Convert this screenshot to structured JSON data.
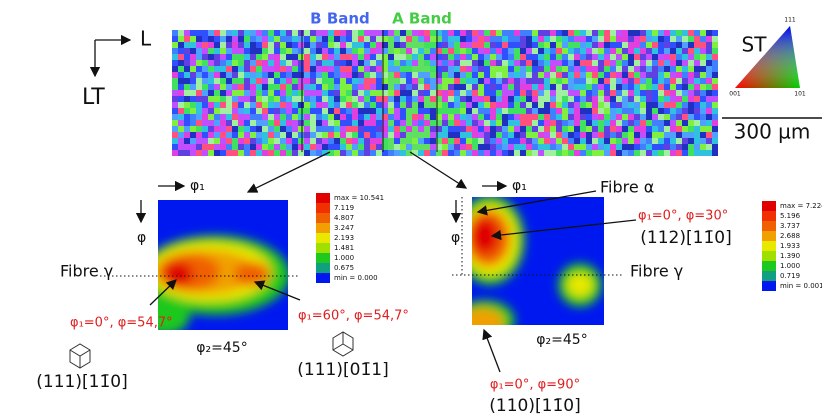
{
  "map": {
    "axis_x": "L",
    "axis_y": "LT",
    "band_b": "B Band",
    "band_a": "A Band",
    "triangle_title": "ST",
    "triangle_top": "111",
    "triangle_left": "001",
    "triangle_right": "101",
    "scale_bar": "300 µm"
  },
  "odf_left": {
    "axis_phi1": "φ₁",
    "axis_phi": "φ",
    "fibre_gamma": "Fibre γ",
    "section": "φ₂=45°",
    "label_1_angles": "φ₁=0°, φ=54,7°",
    "label_1_plane": "(111)[11̄0]",
    "label_2_angles": "φ₁=60°, φ=54,7°",
    "label_2_plane": "(111)[01̄1]",
    "legend": [
      "max = 10.541",
      "7.119",
      "4.807",
      "3.247",
      "2.193",
      "1.481",
      "1.000",
      "0.675",
      "min = 0.000"
    ]
  },
  "odf_right": {
    "axis_phi1": "φ₁",
    "axis_phi": "φ",
    "fibre_alpha": "Fibre α",
    "fibre_gamma": "Fibre γ",
    "section": "φ₂=45°",
    "label_1_angles": "φ₁=0°, φ=30°",
    "label_1_plane": "(112)[11̄0]",
    "label_2_angles": "φ₁=0°, φ=90°",
    "label_2_plane": "(110)[11̄0]",
    "legend": [
      "max = 7.224",
      "5.196",
      "3.737",
      "2.688",
      "1.933",
      "1.390",
      "1.000",
      "0.719",
      "min = 0.001"
    ]
  }
}
